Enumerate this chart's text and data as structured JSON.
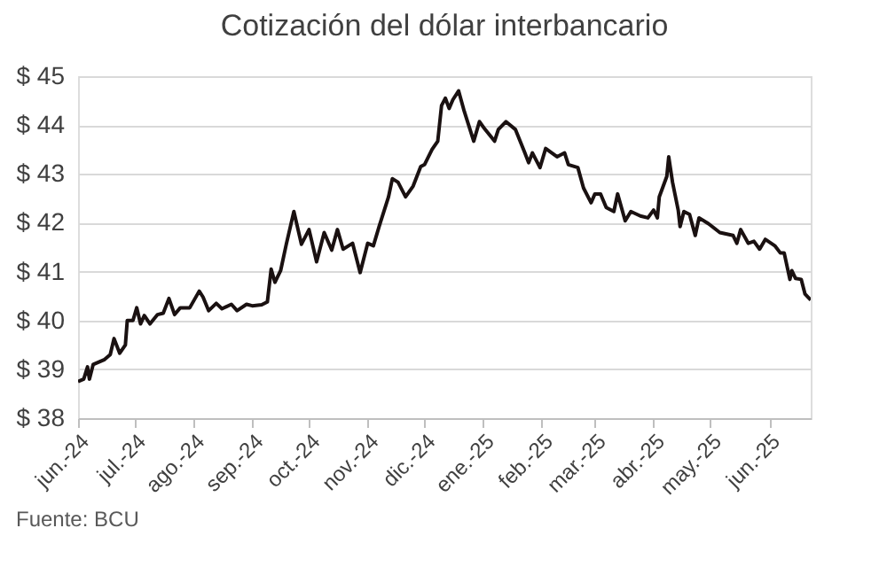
{
  "chart_data": {
    "type": "line",
    "title": "Cotización del dólar interbancario",
    "annotations": [
      "Fuente: BCU"
    ],
    "xlim": [
      "2024-06-01",
      "2025-06-23"
    ],
    "xticks": [
      {
        "value": "2024-06-01",
        "label": "jun.-24"
      },
      {
        "value": "2024-07-01",
        "label": "jul.-24"
      },
      {
        "value": "2024-08-01",
        "label": "ago.-24"
      },
      {
        "value": "2024-09-01",
        "label": "sep.-24"
      },
      {
        "value": "2024-10-01",
        "label": "oct.-24"
      },
      {
        "value": "2024-11-01",
        "label": "nov.-24"
      },
      {
        "value": "2024-12-01",
        "label": "dic.-24"
      },
      {
        "value": "2025-01-01",
        "label": "ene.-25"
      },
      {
        "value": "2025-02-01",
        "label": "feb.-25"
      },
      {
        "value": "2025-03-01",
        "label": "mar.-25"
      },
      {
        "value": "2025-04-01",
        "label": "abr.-25"
      },
      {
        "value": "2025-05-01",
        "label": "may.-25"
      },
      {
        "value": "2025-06-01",
        "label": "jun.-25"
      }
    ],
    "ylim": [
      38,
      45
    ],
    "yticks": [
      {
        "value": 38,
        "label": "$ 38"
      },
      {
        "value": 39,
        "label": "$ 39"
      },
      {
        "value": 40,
        "label": "$ 40"
      },
      {
        "value": 41,
        "label": "$ 41"
      },
      {
        "value": 42,
        "label": "$ 42"
      },
      {
        "value": 43,
        "label": "$ 43"
      },
      {
        "value": 44,
        "label": "$ 44"
      },
      {
        "value": 45,
        "label": "$ 45"
      }
    ],
    "grid": "y",
    "marker": "none",
    "line_style": "solid",
    "x": [
      "2024-06-01",
      "2024-06-04",
      "2024-06-06",
      "2024-06-07",
      "2024-06-09",
      "2024-06-12",
      "2024-06-15",
      "2024-06-18",
      "2024-06-20",
      "2024-06-23",
      "2024-06-26",
      "2024-06-27",
      "2024-06-30",
      "2024-07-02",
      "2024-07-04",
      "2024-07-06",
      "2024-07-09",
      "2024-07-13",
      "2024-07-16",
      "2024-07-19",
      "2024-07-22",
      "2024-07-25",
      "2024-07-30",
      "2024-08-04",
      "2024-08-06",
      "2024-08-09",
      "2024-08-13",
      "2024-08-16",
      "2024-08-21",
      "2024-08-24",
      "2024-08-29",
      "2024-09-01",
      "2024-09-06",
      "2024-09-09",
      "2024-09-11",
      "2024-09-13",
      "2024-09-16",
      "2024-09-19",
      "2024-09-23",
      "2024-09-27",
      "2024-10-01",
      "2024-10-05",
      "2024-10-09",
      "2024-10-13",
      "2024-10-16",
      "2024-10-19",
      "2024-10-24",
      "2024-10-28",
      "2024-11-01",
      "2024-11-04",
      "2024-11-07",
      "2024-11-12",
      "2024-11-14",
      "2024-11-17",
      "2024-11-21",
      "2024-11-25",
      "2024-11-29",
      "2024-12-01",
      "2024-12-05",
      "2024-12-08",
      "2024-12-10",
      "2024-12-12",
      "2024-12-14",
      "2024-12-16",
      "2024-12-19",
      "2024-12-22",
      "2024-12-27",
      "2024-12-30",
      "2025-01-02",
      "2025-01-07",
      "2025-01-09",
      "2025-01-13",
      "2025-01-18",
      "2025-01-23",
      "2025-01-25",
      "2025-01-27",
      "2025-01-31",
      "2025-02-03",
      "2025-02-09",
      "2025-02-13",
      "2025-02-15",
      "2025-02-20",
      "2025-02-23",
      "2025-02-27",
      "2025-03-01",
      "2025-03-04",
      "2025-03-07",
      "2025-03-11",
      "2025-03-13",
      "2025-03-17",
      "2025-03-20",
      "2025-03-25",
      "2025-03-29",
      "2025-04-01",
      "2025-04-03",
      "2025-04-04",
      "2025-04-08",
      "2025-04-09",
      "2025-04-11",
      "2025-04-14",
      "2025-04-15",
      "2025-04-17",
      "2025-04-20",
      "2025-04-23",
      "2025-04-25",
      "2025-04-30",
      "2025-05-06",
      "2025-05-13",
      "2025-05-15",
      "2025-05-17",
      "2025-05-21",
      "2025-05-24",
      "2025-05-27",
      "2025-05-30",
      "2025-06-04",
      "2025-06-07",
      "2025-06-09",
      "2025-06-12",
      "2025-06-13",
      "2025-06-15",
      "2025-06-18",
      "2025-06-20",
      "2025-06-23"
    ],
    "series": [
      {
        "color": "#1a1111",
        "values": [
          38.75,
          38.8,
          39.05,
          38.8,
          39.1,
          39.15,
          39.2,
          39.3,
          39.63,
          39.33,
          39.5,
          40.0,
          40.0,
          40.26,
          39.93,
          40.1,
          39.93,
          40.12,
          40.15,
          40.45,
          40.12,
          40.26,
          40.26,
          40.6,
          40.48,
          40.2,
          40.35,
          40.24,
          40.33,
          40.2,
          40.33,
          40.3,
          40.32,
          40.38,
          41.05,
          40.78,
          41.02,
          41.56,
          42.23,
          41.56,
          41.86,
          41.2,
          41.8,
          41.44,
          41.86,
          41.46,
          41.58,
          40.98,
          41.58,
          41.53,
          41.92,
          42.53,
          42.9,
          42.83,
          42.53,
          42.75,
          43.15,
          43.19,
          43.5,
          43.67,
          44.4,
          44.55,
          44.34,
          44.52,
          44.7,
          44.28,
          43.67,
          44.07,
          43.91,
          43.67,
          43.91,
          44.07,
          43.91,
          43.43,
          43.23,
          43.43,
          43.13,
          43.52,
          43.35,
          43.43,
          43.19,
          43.13,
          42.71,
          42.41,
          42.59,
          42.59,
          42.31,
          42.23,
          42.59,
          42.04,
          42.23,
          42.14,
          42.1,
          42.26,
          42.1,
          42.53,
          42.95,
          43.35,
          42.83,
          42.26,
          41.92,
          42.23,
          42.17,
          41.74,
          42.1,
          41.98,
          41.8,
          41.74,
          41.58,
          41.86,
          41.58,
          41.62,
          41.46,
          41.66,
          41.53,
          41.38,
          41.38,
          40.84,
          41.02,
          40.86,
          40.84,
          40.54,
          40.42
        ]
      }
    ]
  }
}
